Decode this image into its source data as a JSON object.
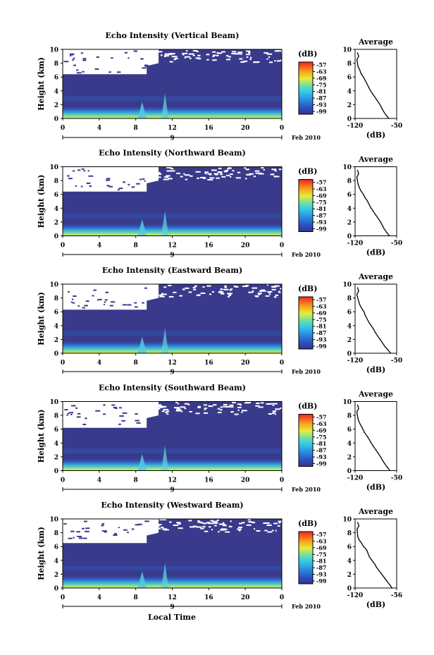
{
  "colorbar_unit": "(dB)",
  "colorbar_ticks": [
    "-57",
    "-63",
    "-69",
    "-75",
    "-81",
    "-87",
    "-93",
    "-99"
  ],
  "date_label": "Feb 2010",
  "xlabel": "Local Time",
  "avg_title": "Average",
  "avg_xlabel": "(dB)",
  "chart_data": [
    {
      "type": "heatmap",
      "title": "Echo Intensity (Vertical Beam)",
      "ylabel": "Height (km)",
      "xticks": [
        "0",
        "4",
        "8",
        "12",
        "16",
        "20",
        "0"
      ],
      "date_tick": "9",
      "yticks": [
        "0",
        "2",
        "4",
        "6",
        "8",
        "10"
      ],
      "xlim": [
        0,
        24
      ],
      "ylim": [
        0,
        10
      ],
      "color_scale": [
        -99,
        -57
      ],
      "avg": {
        "type": "line",
        "xlim": [
          -120,
          -50
        ],
        "xticks": [
          "-120",
          "-50"
        ],
        "x": [
          -63,
          -68,
          -72,
          -75,
          -78,
          -82,
          -86,
          -90,
          -94,
          -97,
          -100,
          -103,
          -106,
          -110,
          -112,
          -115,
          -117,
          -114,
          -116
        ],
        "y": [
          0,
          0.5,
          1,
          1.5,
          2,
          2.5,
          3,
          3.5,
          4,
          4.5,
          5,
          5.5,
          6,
          6.5,
          7,
          7.5,
          8.5,
          9,
          9.5
        ]
      }
    },
    {
      "type": "heatmap",
      "title": "Echo Intensity (Northward Beam)",
      "ylabel": "Height (km)",
      "xticks": [
        "0",
        "4",
        "8",
        "12",
        "16",
        "20",
        "0"
      ],
      "date_tick": "9",
      "yticks": [
        "0",
        "2",
        "4",
        "6",
        "8",
        "10"
      ],
      "xlim": [
        0,
        24
      ],
      "ylim": [
        0,
        10
      ],
      "color_scale": [
        -99,
        -57
      ],
      "avg": {
        "type": "line",
        "xlim": [
          -120,
          -50
        ],
        "xticks": [
          "-120",
          "-50"
        ],
        "x": [
          -62,
          -67,
          -71,
          -74,
          -77,
          -81,
          -85,
          -89,
          -93,
          -96,
          -99,
          -103,
          -106,
          -110,
          -113,
          -115,
          -117,
          -114,
          -116
        ],
        "y": [
          0,
          0.5,
          1,
          1.5,
          2,
          2.5,
          3,
          3.5,
          4,
          4.5,
          5,
          5.5,
          6,
          6.5,
          7,
          7.5,
          8.5,
          9,
          9.5
        ]
      }
    },
    {
      "type": "heatmap",
      "title": "Echo Intensity (Eastward Beam)",
      "ylabel": "Height (km)",
      "xticks": [
        "0",
        "4",
        "8",
        "12",
        "16",
        "20",
        "0"
      ],
      "date_tick": "9",
      "yticks": [
        "0",
        "2",
        "4",
        "6",
        "8",
        "10"
      ],
      "xlim": [
        0,
        24
      ],
      "ylim": [
        0,
        10
      ],
      "color_scale": [
        -99,
        -57
      ],
      "avg": {
        "type": "line",
        "xlim": [
          -120,
          -50
        ],
        "xticks": [
          "-120",
          "-50"
        ],
        "x": [
          -60,
          -65,
          -70,
          -74,
          -78,
          -82,
          -86,
          -89,
          -93,
          -97,
          -100,
          -103,
          -105,
          -109,
          -112,
          -114,
          -117,
          -114,
          -116
        ],
        "y": [
          0,
          0.5,
          1,
          1.5,
          2,
          2.5,
          3,
          3.5,
          4,
          4.5,
          5,
          5.5,
          6,
          6.5,
          7,
          7.5,
          8.5,
          9,
          9.5
        ]
      }
    },
    {
      "type": "heatmap",
      "title": "Echo Intensity (Southward Beam)",
      "ylabel": "Height (km)",
      "xticks": [
        "0",
        "4",
        "8",
        "12",
        "16",
        "20",
        "0"
      ],
      "date_tick": "9",
      "yticks": [
        "0",
        "2",
        "4",
        "6",
        "8",
        "10"
      ],
      "xlim": [
        0,
        24
      ],
      "ylim": [
        0,
        10
      ],
      "color_scale": [
        -99,
        -57
      ],
      "avg": {
        "type": "line",
        "xlim": [
          -120,
          -50
        ],
        "xticks": [
          "-120",
          "-50"
        ],
        "x": [
          -61,
          -66,
          -70,
          -74,
          -77,
          -81,
          -85,
          -89,
          -93,
          -96,
          -100,
          -104,
          -107,
          -110,
          -113,
          -115,
          -117,
          -114,
          -116
        ],
        "y": [
          0,
          0.5,
          1,
          1.5,
          2,
          2.5,
          3,
          3.5,
          4,
          4.5,
          5,
          5.5,
          6,
          6.5,
          7,
          7.5,
          8.5,
          9,
          9.5
        ]
      }
    },
    {
      "type": "heatmap",
      "title": "Echo Intensity (Westward Beam)",
      "ylabel": "Height (km)",
      "xticks": [
        "0",
        "4",
        "8",
        "12",
        "16",
        "20",
        "0"
      ],
      "date_tick": "9",
      "yticks": [
        "0",
        "2",
        "4",
        "6",
        "8",
        "10"
      ],
      "xlim": [
        0,
        24
      ],
      "ylim": [
        0,
        10
      ],
      "color_scale": [
        -99,
        -57
      ],
      "avg": {
        "type": "line",
        "xlim": [
          -120,
          -56
        ],
        "xticks": [
          "-120",
          "-56"
        ],
        "x": [
          -63,
          -67,
          -71,
          -75,
          -79,
          -83,
          -87,
          -90,
          -94,
          -98,
          -100,
          -102,
          -107,
          -110,
          -114,
          -116,
          -117,
          -114,
          -116
        ],
        "y": [
          0,
          0.5,
          1,
          1.5,
          2,
          2.5,
          3,
          3.5,
          4,
          4.5,
          5,
          5.5,
          6,
          6.5,
          7,
          7.5,
          8.5,
          9,
          9.5
        ]
      }
    }
  ]
}
